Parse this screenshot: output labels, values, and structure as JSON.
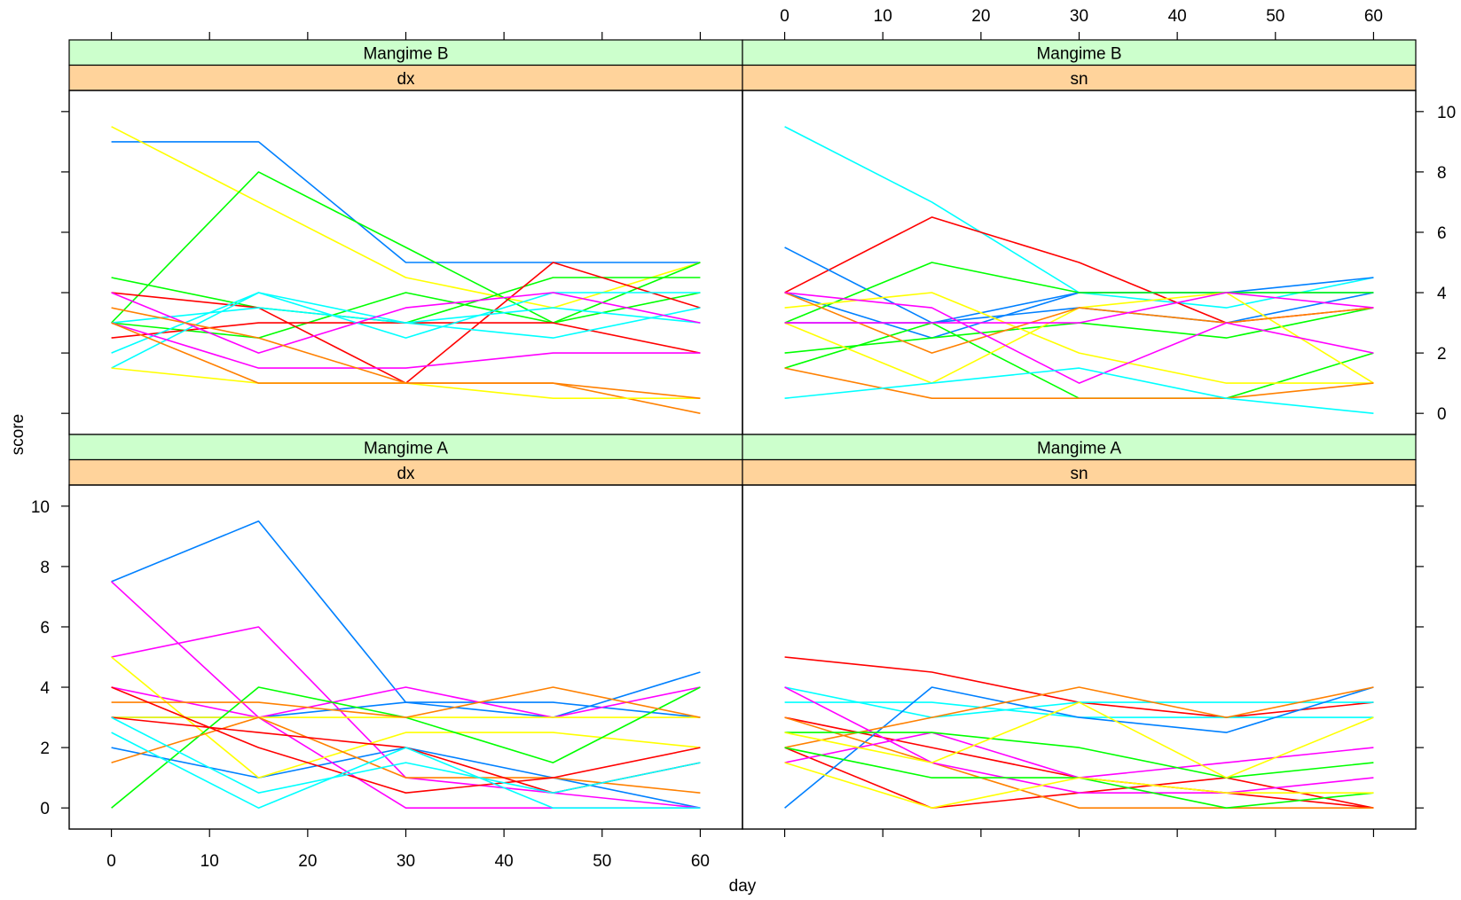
{
  "chart_data": {
    "type": "line",
    "layout": "lattice 2x2 panels (trellis)",
    "xlabel": "day",
    "ylabel": "score",
    "xlim": [
      -4.3,
      64.3
    ],
    "ylim": [
      -0.7,
      10.7
    ],
    "x_ticks": [
      0,
      10,
      20,
      30,
      40,
      50,
      60
    ],
    "y_ticks": [
      0,
      2,
      4,
      6,
      8,
      10
    ],
    "x": [
      0,
      15,
      30,
      45,
      60
    ],
    "colors": {
      "strip_outer": "#CCFFCC",
      "strip_inner": "#FFD39B",
      "palette": [
        "#0080FF",
        "#FF00FF",
        "#FFFF00",
        "#00FFFF",
        "#00FF00",
        "#FF0000",
        "#FF8000"
      ]
    },
    "panels": [
      {
        "id": "B-dx",
        "strip_outer": "Mangime B",
        "strip_inner": "dx",
        "series": [
          {
            "color": "#0080FF",
            "values": [
              9,
              9,
              5,
              5,
              5
            ]
          },
          {
            "color": "#FFFF00",
            "values": [
              9.5,
              7,
              4.5,
              3.5,
              5
            ]
          },
          {
            "color": "#00FF00",
            "values": [
              3,
              8,
              5.5,
              3,
              5
            ]
          },
          {
            "color": "#00FF00",
            "values": [
              4.5,
              3.5,
              3,
              4.5,
              4.5
            ]
          },
          {
            "color": "#00FF00",
            "values": [
              3,
              2.5,
              4,
              3,
              4
            ]
          },
          {
            "color": "#FF0000",
            "values": [
              4,
              3.5,
              1,
              5,
              3.5
            ]
          },
          {
            "color": "#FF0000",
            "values": [
              2.5,
              3,
              3,
              3,
              2
            ]
          },
          {
            "color": "#00FFFF",
            "values": [
              2,
              4,
              3,
              3.5,
              3
            ]
          },
          {
            "color": "#00FFFF",
            "values": [
              1.5,
              4,
              2.5,
              4,
              4
            ]
          },
          {
            "color": "#00FFFF",
            "values": [
              3,
              3.5,
              3,
              2.5,
              3.5
            ]
          },
          {
            "color": "#FF00FF",
            "values": [
              4,
              2,
              3.5,
              4,
              3
            ]
          },
          {
            "color": "#FF00FF",
            "values": [
              3,
              1.5,
              1.5,
              2,
              2
            ]
          },
          {
            "color": "#FF8000",
            "values": [
              3.5,
              2.5,
              1,
              1,
              0
            ]
          },
          {
            "color": "#FFFF00",
            "values": [
              1.5,
              1,
              1,
              0.5,
              0.5
            ]
          },
          {
            "color": "#FF8000",
            "values": [
              3,
              1,
              1,
              1,
              0.5
            ]
          }
        ]
      },
      {
        "id": "B-sn",
        "strip_outer": "Mangime B",
        "strip_inner": "sn",
        "series": [
          {
            "color": "#00FFFF",
            "values": [
              9.5,
              7,
              4,
              3.5,
              4.5
            ]
          },
          {
            "color": "#FF0000",
            "values": [
              4,
              6.5,
              5,
              3,
              3.5
            ]
          },
          {
            "color": "#0080FF",
            "values": [
              5.5,
              3,
              4,
              4,
              4.5
            ]
          },
          {
            "color": "#0080FF",
            "values": [
              3,
              3,
              3.5,
              3,
              4
            ]
          },
          {
            "color": "#0080FF",
            "values": [
              4,
              2.5,
              4,
              4,
              4
            ]
          },
          {
            "color": "#00FF00",
            "values": [
              3,
              5,
              4,
              4,
              4
            ]
          },
          {
            "color": "#00FF00",
            "values": [
              2,
              2.5,
              3,
              2.5,
              3.5
            ]
          },
          {
            "color": "#00FF00",
            "values": [
              1.5,
              3,
              0.5,
              0.5,
              2
            ]
          },
          {
            "color": "#FFFF00",
            "values": [
              3.5,
              4,
              2,
              1,
              1
            ]
          },
          {
            "color": "#FFFF00",
            "values": [
              3,
              1,
              3.5,
              4,
              1
            ]
          },
          {
            "color": "#FF8000",
            "values": [
              4,
              2,
              3.5,
              3,
              3.5
            ]
          },
          {
            "color": "#FF8000",
            "values": [
              1.5,
              0.5,
              0.5,
              0.5,
              1
            ]
          },
          {
            "color": "#FF00FF",
            "values": [
              4,
              3.5,
              1,
              3,
              2
            ]
          },
          {
            "color": "#FF00FF",
            "values": [
              3,
              3,
              3,
              4,
              3.5
            ]
          },
          {
            "color": "#00FFFF",
            "values": [
              0.5,
              1,
              1.5,
              0.5,
              0
            ]
          }
        ]
      },
      {
        "id": "A-dx",
        "strip_outer": "Mangime A",
        "strip_inner": "dx",
        "series": [
          {
            "color": "#0080FF",
            "values": [
              7.5,
              9.5,
              3.5,
              3.5,
              3
            ]
          },
          {
            "color": "#0080FF",
            "values": [
              3,
              3,
              3.5,
              3,
              4.5
            ]
          },
          {
            "color": "#0080FF",
            "values": [
              2,
              1,
              2,
              1,
              0
            ]
          },
          {
            "color": "#FF00FF",
            "values": [
              7.5,
              3,
              0,
              0,
              0
            ]
          },
          {
            "color": "#FF00FF",
            "values": [
              5,
              6,
              1,
              0.5,
              0
            ]
          },
          {
            "color": "#FF00FF",
            "values": [
              4,
              3,
              4,
              3,
              4
            ]
          },
          {
            "color": "#FFFF00",
            "values": [
              5,
              1,
              2.5,
              2.5,
              2
            ]
          },
          {
            "color": "#FFFF00",
            "values": [
              3,
              3,
              3,
              3,
              3
            ]
          },
          {
            "color": "#00FF00",
            "values": [
              0,
              4,
              3,
              1.5,
              4
            ]
          },
          {
            "color": "#FF8000",
            "values": [
              3.5,
              3.5,
              3,
              4,
              3
            ]
          },
          {
            "color": "#FF8000",
            "values": [
              1.5,
              3,
              1,
              1,
              0.5
            ]
          },
          {
            "color": "#FF0000",
            "values": [
              4,
              2,
              0.5,
              1,
              2
            ]
          },
          {
            "color": "#FF0000",
            "values": [
              3,
              2.5,
              2,
              0.5,
              1.5
            ]
          },
          {
            "color": "#00FFFF",
            "values": [
              2.5,
              0,
              2,
              0,
              0
            ]
          },
          {
            "color": "#00FFFF",
            "values": [
              3,
              0.5,
              1.5,
              0.5,
              1.5
            ]
          }
        ]
      },
      {
        "id": "A-sn",
        "strip_outer": "Mangime A",
        "strip_inner": "sn",
        "series": [
          {
            "color": "#FF0000",
            "values": [
              5,
              4.5,
              3.5,
              3,
              3.5
            ]
          },
          {
            "color": "#FF0000",
            "values": [
              3,
              2,
              1,
              0.5,
              0
            ]
          },
          {
            "color": "#FF0000",
            "values": [
              2,
              0,
              0.5,
              1,
              0
            ]
          },
          {
            "color": "#00FFFF",
            "values": [
              4,
              3,
              3.5,
              3.5,
              3.5
            ]
          },
          {
            "color": "#00FFFF",
            "values": [
              3.5,
              3.5,
              3,
              3,
              3
            ]
          },
          {
            "color": "#0080FF",
            "values": [
              0,
              4,
              3,
              2.5,
              4
            ]
          },
          {
            "color": "#FF8000",
            "values": [
              2,
              3,
              4,
              3,
              4
            ]
          },
          {
            "color": "#FF8000",
            "values": [
              3,
              1.5,
              0,
              0,
              0
            ]
          },
          {
            "color": "#FF00FF",
            "values": [
              4,
              1.5,
              0.5,
              0.5,
              1
            ]
          },
          {
            "color": "#FF00FF",
            "values": [
              1.5,
              2.5,
              1,
              1.5,
              2
            ]
          },
          {
            "color": "#00FF00",
            "values": [
              2.5,
              2.5,
              2,
              1,
              1.5
            ]
          },
          {
            "color": "#00FF00",
            "values": [
              2,
              1,
              1,
              0,
              0.5
            ]
          },
          {
            "color": "#FFFF00",
            "values": [
              2.5,
              1.5,
              3.5,
              1,
              3
            ]
          },
          {
            "color": "#FFFF00",
            "values": [
              1.5,
              0,
              1,
              0.5,
              0.5
            ]
          }
        ]
      }
    ]
  }
}
